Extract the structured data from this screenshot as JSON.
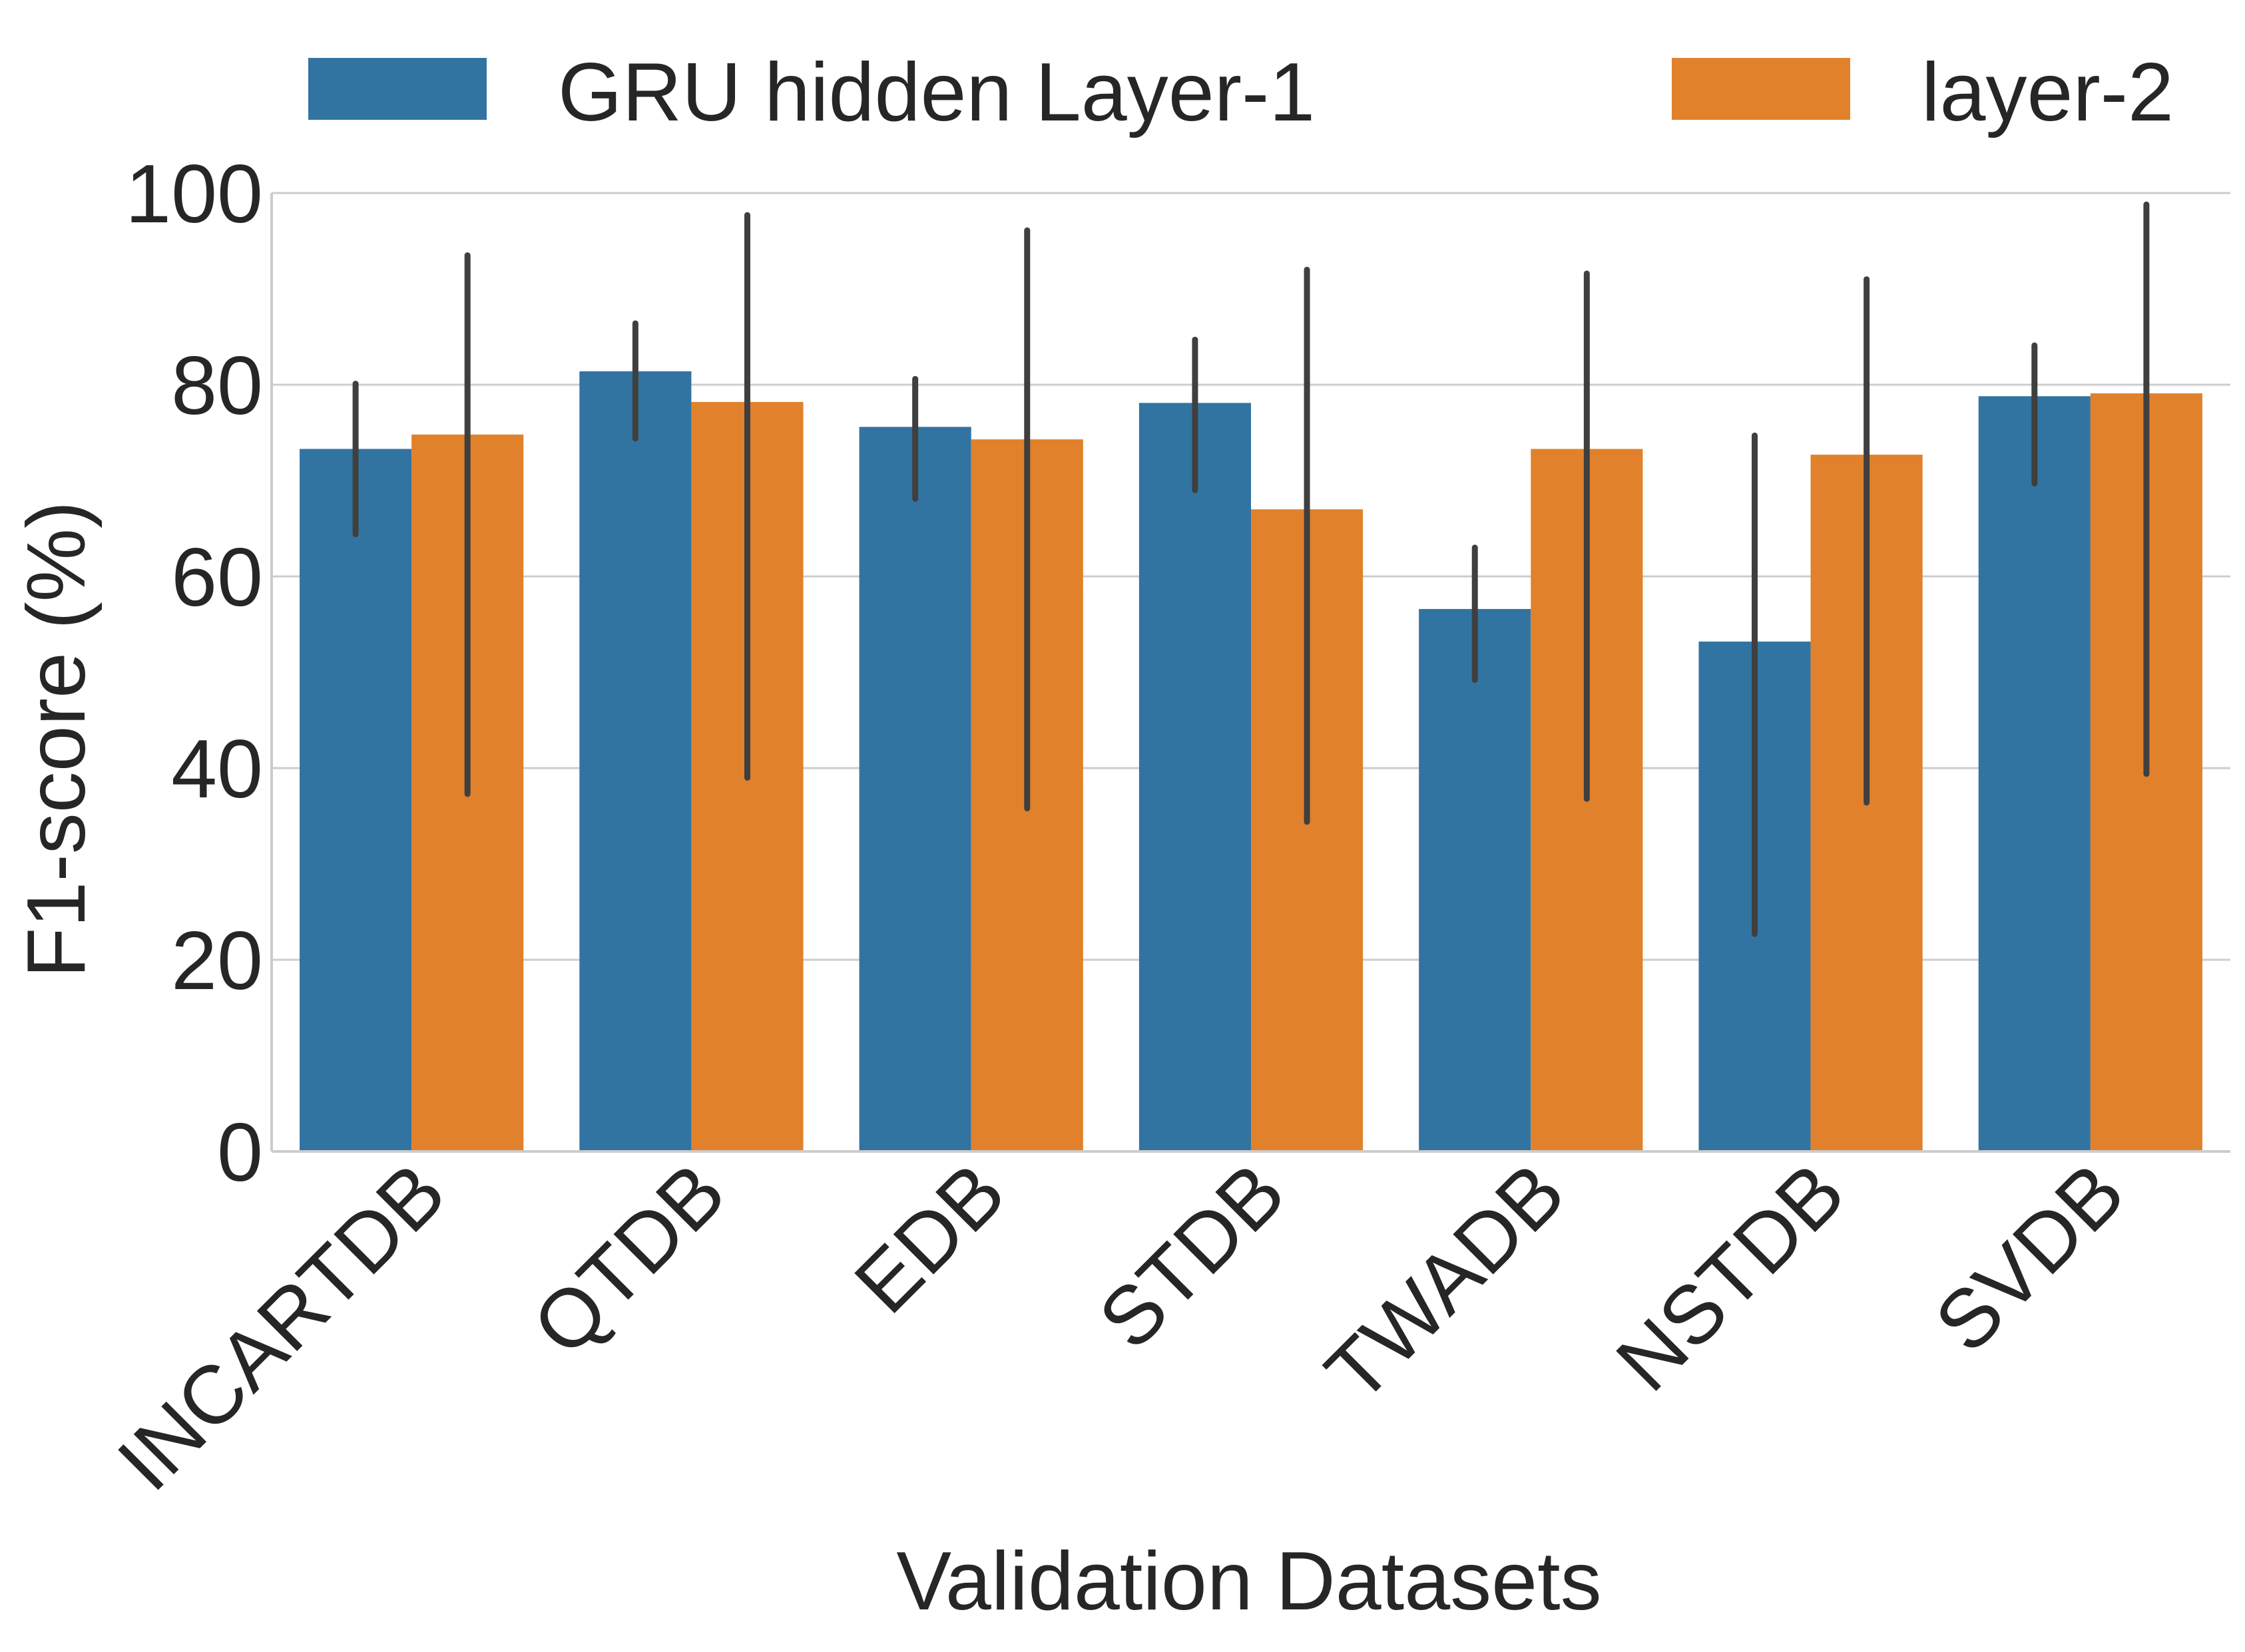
{
  "chart_data": {
    "type": "bar",
    "title": "",
    "xlabel": "Validation Datasets",
    "ylabel": "F1-score (%)",
    "ylim": [
      0,
      100
    ],
    "yticks": [
      "0",
      "20",
      "40",
      "60",
      "80",
      "100"
    ],
    "grid": "horizontal",
    "legend_position": "top",
    "categories": [
      "INCARTDB",
      "QTDB",
      "EDB",
      "STDB",
      "TWADB",
      "NSTDB",
      "SVDB"
    ],
    "series": [
      {
        "name": "GRU hidden Layer-1",
        "color": "#3274a1",
        "values": [
          73.3,
          81.4,
          75.6,
          78.1,
          56.6,
          53.2,
          78.8
        ],
        "err_low": [
          64.4,
          74.4,
          68.1,
          69.0,
          49.2,
          22.7,
          69.7
        ],
        "err_high": [
          80.1,
          86.4,
          80.6,
          84.7,
          63.0,
          74.7,
          84.1
        ]
      },
      {
        "name": "layer-2",
        "color": "#e1812c",
        "values": [
          74.8,
          78.2,
          74.3,
          67.0,
          73.3,
          72.7,
          79.1
        ],
        "err_low": [
          37.3,
          39.0,
          35.8,
          34.4,
          36.8,
          36.4,
          39.4
        ],
        "err_high": [
          93.5,
          97.7,
          96.1,
          92.0,
          91.6,
          91.0,
          98.8
        ]
      }
    ]
  }
}
